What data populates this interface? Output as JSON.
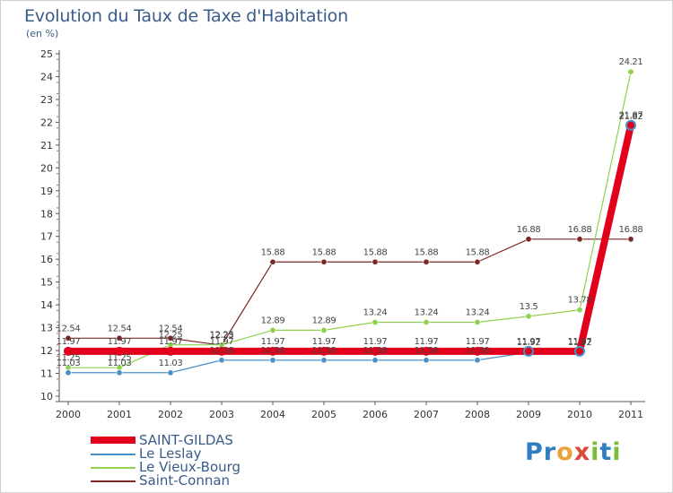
{
  "title": "Evolution du Taux de Taxe d'Habitation",
  "unit_label": "(en %)",
  "logo_text": "Proxiti",
  "chart_data": {
    "type": "line",
    "title": "Evolution du Taux de Taxe d'Habitation",
    "ylabel": "(en %)",
    "xlabel": "",
    "ylim": [
      10,
      25
    ],
    "y_ticks": [
      10,
      11,
      12,
      13,
      14,
      15,
      16,
      17,
      18,
      19,
      20,
      21,
      22,
      23,
      24,
      25
    ],
    "grid": false,
    "legend_position": "bottom-left",
    "x": [
      "2000",
      "2001",
      "2002",
      "2003",
      "2004",
      "2005",
      "2006",
      "2007",
      "2008",
      "2009",
      "2010",
      "2011"
    ],
    "series": [
      {
        "name": "SAINT-GILDAS",
        "color": "#e2001a",
        "values": [
          11.97,
          11.97,
          11.97,
          11.97,
          11.97,
          11.97,
          11.97,
          11.97,
          11.97,
          11.97,
          11.97,
          21.87
        ],
        "labels": [
          "11.97",
          "11.97",
          "11.97",
          "11.97",
          "11.97",
          "11.97",
          "11.97",
          "11.97",
          "11.97",
          "11.97",
          "11.97",
          "21.87"
        ]
      },
      {
        "name": "Le Leslay",
        "color": "#4a90c8",
        "values": [
          11.03,
          11.03,
          11.03,
          11.58,
          11.58,
          11.58,
          11.58,
          11.58,
          11.58,
          11.92,
          11.92,
          21.82
        ],
        "labels": [
          "11.03",
          "11.03",
          "11.03",
          "11.58",
          "11.58",
          "11.58",
          "11.58",
          "11.58",
          "11.58",
          "11.92",
          "11.92",
          "21.82"
        ]
      },
      {
        "name": "Le Vieux-Bourg",
        "color": "#8fd14f",
        "values": [
          11.25,
          11.25,
          12.25,
          12.25,
          12.89,
          12.89,
          13.24,
          13.24,
          13.24,
          13.5,
          13.78,
          24.21
        ],
        "labels": [
          "11.25",
          "11.25",
          "12.25",
          "12.25",
          "12.89",
          "12.89",
          "13.24",
          "13.24",
          "13.24",
          "13.5",
          "13.78",
          "24.21"
        ]
      },
      {
        "name": "Saint-Connan",
        "color": "#7a2828",
        "values": [
          12.54,
          12.54,
          12.54,
          12.23,
          15.88,
          15.88,
          15.88,
          15.88,
          15.88,
          16.88,
          16.88,
          16.88
        ],
        "labels": [
          "12.54",
          "12.54",
          "12.54",
          "12.23",
          "15.88",
          "15.88",
          "15.88",
          "15.88",
          "15.88",
          "16.88",
          "16.88",
          "16.88"
        ]
      }
    ]
  }
}
